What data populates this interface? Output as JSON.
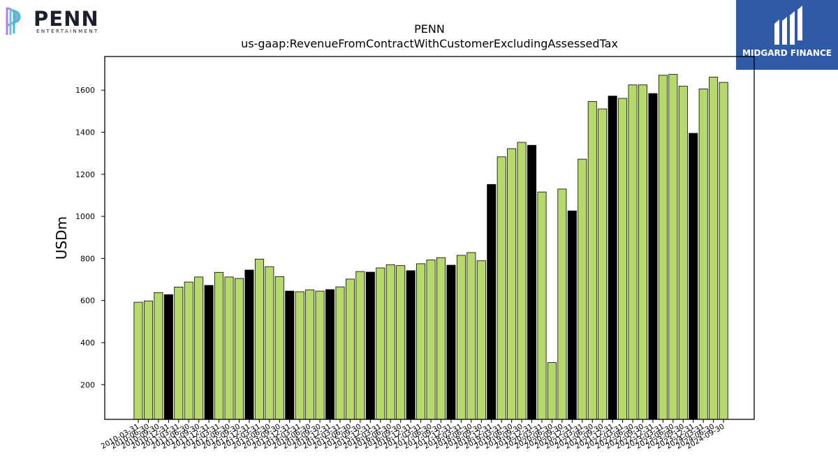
{
  "header": {
    "company_logo_name": "PENN",
    "company_logo_sub": "ENTERTAINMENT",
    "brand_logo_name": "MIDGARD FINANCE",
    "brand_color": "#2f5aa8"
  },
  "chart_data": {
    "type": "bar",
    "title": "PENN",
    "subtitle": "us-gaap:RevenueFromContractWithCustomerExcludingAssessedTax",
    "xlabel": "",
    "ylabel": "USDm",
    "ylim": [
      35,
      1760
    ],
    "yticks": [
      200,
      400,
      600,
      800,
      1000,
      1200,
      1400,
      1600
    ],
    "grid": false,
    "legend": "none",
    "colors": {
      "quarter": "#b5d96b",
      "year_end": "#000000",
      "edge": "#000000"
    },
    "categories": [
      "2010-03-31",
      "2010-06-30",
      "2010-09-30",
      "2010-12-31",
      "2011-03-31",
      "2011-06-30",
      "2011-09-30",
      "2011-12-31",
      "2012-03-31",
      "2012-06-30",
      "2012-09-30",
      "2012-12-31",
      "2013-03-31",
      "2013-06-30",
      "2013-09-30",
      "2013-12-31",
      "2014-03-31",
      "2014-06-30",
      "2014-09-30",
      "2014-12-31",
      "2015-03-31",
      "2015-06-30",
      "2015-09-30",
      "2015-12-31",
      "2016-03-31",
      "2016-06-30",
      "2016-09-30",
      "2016-12-31",
      "2017-03-31",
      "2017-06-30",
      "2017-09-30",
      "2017-12-31",
      "2018-03-31",
      "2018-06-30",
      "2018-09-30",
      "2018-12-31",
      "2019-03-31",
      "2019-06-30",
      "2019-09-30",
      "2019-12-31",
      "2020-03-31",
      "2020-06-30",
      "2020-09-30",
      "2020-12-31",
      "2021-03-31",
      "2021-06-30",
      "2021-09-30",
      "2021-12-31",
      "2022-03-31",
      "2022-06-30",
      "2022-09-30",
      "2022-12-31",
      "2023-03-31",
      "2023-06-30",
      "2023-09-30",
      "2023-12-31",
      "2024-03-31",
      "2024-06-30",
      "2024-09-30"
    ],
    "values": [
      592,
      598,
      638,
      628,
      664,
      688,
      712,
      672,
      734,
      712,
      705,
      745,
      797,
      761,
      714,
      645,
      642,
      651,
      645,
      652,
      665,
      702,
      738,
      735,
      755,
      770,
      766,
      742,
      775,
      793,
      804,
      768,
      815,
      828,
      789,
      1152,
      1283,
      1322,
      1352,
      1338,
      1116,
      305,
      1130,
      1026,
      1272,
      1546,
      1511,
      1572,
      1561,
      1625,
      1625,
      1584,
      1671,
      1675,
      1619,
      1395,
      1606,
      1662,
      1637
    ],
    "year_end": [
      false,
      false,
      false,
      true,
      false,
      false,
      false,
      true,
      false,
      false,
      false,
      true,
      false,
      false,
      false,
      true,
      false,
      false,
      false,
      true,
      false,
      false,
      false,
      true,
      false,
      false,
      false,
      true,
      false,
      false,
      false,
      true,
      false,
      false,
      false,
      true,
      false,
      false,
      false,
      true,
      false,
      false,
      false,
      true,
      false,
      false,
      false,
      true,
      false,
      false,
      false,
      true,
      false,
      false,
      false,
      true,
      false,
      false,
      false
    ]
  }
}
